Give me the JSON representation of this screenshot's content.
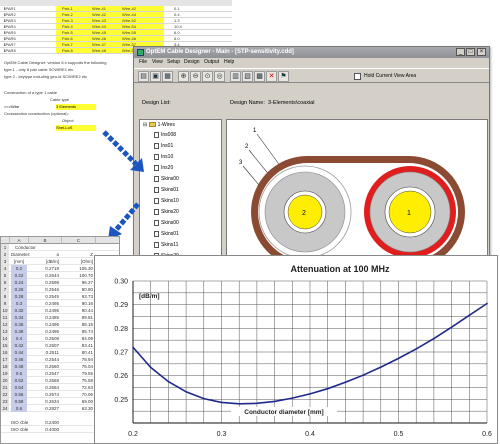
{
  "top_sheet": {
    "rows": [
      {
        "a": "ℹPAR1",
        "b": "Pair-1",
        "c": "Wire-41",
        "d": "Wire-42",
        "e": "0.1"
      },
      {
        "a": "ℹPAR2",
        "b": "Pair-2",
        "c": "Wire-42",
        "d": "Wire-44",
        "e": "0.4"
      },
      {
        "a": "ℹPAR3",
        "b": "Pair-3",
        "c": "Wire-43",
        "d": "Wire-52",
        "e": "1.3"
      },
      {
        "a": "ℹPAR4",
        "b": "Pair-4",
        "c": "Wire-44",
        "d": "Wire-54",
        "e": "10.4"
      },
      {
        "a": "ℹPAR5",
        "b": "Pair-5",
        "c": "Wire-45",
        "d": "Wire-55",
        "e": "6.0"
      },
      {
        "a": "ℹPAR6",
        "b": "Pair-6",
        "c": "Wire-46",
        "d": "Wire-46",
        "e": "5.0"
      },
      {
        "a": "ℹPAR7",
        "b": "Pair-7",
        "c": "Wire-47",
        "d": "Wire-57",
        "e": "3.4"
      },
      {
        "a": "ℹPAR8",
        "b": "Pair-8",
        "c": "Wire-48",
        "d": "Wire-58",
        "e": "10.44"
      }
    ],
    "notes": [
      "OptEM Cable Designer: version 6.x supports the following",
      "type 1 - only 8 pair cable    SCWIRE1 etc",
      "type 2 - keytype including geo-id  SCWIRE2 etc"
    ],
    "section_title": "Construction of a type 1 cable",
    "sub_label": "Cable type",
    "cable_value": "3 Elements",
    "crosssection_label": "Crosssection construction (optional):",
    "object_label": "Object",
    "object_row": "=<>Wire",
    "object_value": "SheLLoS"
  },
  "window": {
    "title": "OptEM Cable Designer - Main - [STP-sensitivity.cdd]",
    "menu": [
      "File",
      "View",
      "Setup",
      "Design",
      "Output",
      "Help"
    ],
    "hold_label": "Hold Current View Area",
    "design_list_label": "Design List:",
    "design_name_label": "Design Name:",
    "design_name_value": "3-Elements\\coaxial",
    "tree_root": "1-Wires",
    "tree_items": [
      "Ins008",
      "Ins01",
      "Ins10",
      "Ins20",
      "Skins00",
      "Skins01",
      "Skins10",
      "Skins20",
      "Skins00",
      "Skins01",
      "Skins11",
      "Skins20",
      "Skins30"
    ],
    "element_labels": [
      "1",
      "2",
      "3"
    ],
    "colors": {
      "jacket": "#8b4a32",
      "shield_ring": "#e01e1e",
      "core": "#ffee00",
      "insulation": "#c8c8c8",
      "titlebar": "#9a9ca2"
    }
  },
  "bottom_sheet": {
    "columns": [
      "A",
      "B",
      "C"
    ],
    "title": "Conductor",
    "head1": [
      "Diameter:",
      "a",
      "Z"
    ],
    "head2": [
      "[mm]",
      "[dB/m]",
      "[Ohm]"
    ],
    "rows": [
      [
        "0.2",
        "0.2719",
        "105.30"
      ],
      [
        "0.22",
        "0.2644",
        "100.70"
      ],
      [
        "0.24",
        "0.2598",
        "96.27"
      ],
      [
        "0.26",
        "0.2546",
        "90.80"
      ],
      [
        "0.28",
        "0.2545",
        "93.73"
      ],
      [
        "0.3",
        "0.2495",
        "90.16"
      ],
      [
        "0.32",
        "0.2495",
        "90.44"
      ],
      [
        "0.34",
        "0.2485",
        "89.81"
      ],
      [
        "0.36",
        "0.2496",
        "88.15"
      ],
      [
        "0.38",
        "0.2495",
        "85.74"
      ],
      [
        "0.4",
        "0.2508",
        "84.09"
      ],
      [
        "0.42",
        "0.2507",
        "83.41"
      ],
      [
        "0.44",
        "0.2511",
        "80.41"
      ],
      [
        "0.46",
        "0.2544",
        "78.94"
      ],
      [
        "0.48",
        "0.2560",
        "76.04"
      ],
      [
        "0.5",
        "0.2547",
        "79.55"
      ],
      [
        "0.52",
        "0.2568",
        "75.58"
      ],
      [
        "0.54",
        "0.2564",
        "72.63"
      ],
      [
        "0.56",
        "0.2574",
        "70.06"
      ],
      [
        "0.58",
        "0.2634",
        "69.00"
      ],
      [
        "0.6",
        "0.2827",
        "63.30"
      ]
    ],
    "footer": [
      [
        "ISO cble",
        "0.2400"
      ],
      [
        "ISO cble",
        "0.4000"
      ]
    ]
  },
  "chart_data": {
    "type": "line",
    "title": "Attenuation at 100 MHz",
    "xlabel": "Conductor diameter [mm]",
    "ylabel": "[dB/m]",
    "xlim": [
      0.2,
      0.6
    ],
    "ylim": [
      0.24,
      0.3
    ],
    "xticks": [
      "0.2",
      "0.3",
      "0.4",
      "0.5",
      "0.6"
    ],
    "yticks": [
      "0.25",
      "0.26",
      "0.27",
      "0.28",
      "0.29",
      "0.30"
    ],
    "grid": true,
    "line_color": "#1f2a8a",
    "x": [
      0.2,
      0.22,
      0.24,
      0.26,
      0.28,
      0.3,
      0.32,
      0.34,
      0.36,
      0.38,
      0.4,
      0.42,
      0.44,
      0.46,
      0.48,
      0.5,
      0.52,
      0.54,
      0.56,
      0.58,
      0.6
    ],
    "y": [
      0.272,
      0.2635,
      0.2575,
      0.2532,
      0.2503,
      0.2487,
      0.2481,
      0.2483,
      0.2491,
      0.2505,
      0.2523,
      0.2545,
      0.2572,
      0.2602,
      0.2636,
      0.2673,
      0.2713,
      0.2757,
      0.2805,
      0.2855,
      0.2905
    ]
  }
}
